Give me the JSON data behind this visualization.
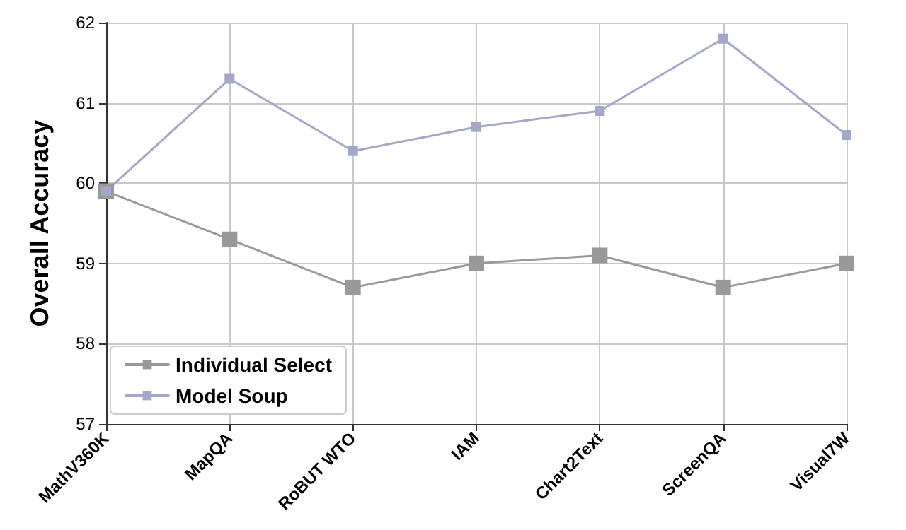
{
  "chart_data": {
    "type": "line",
    "ylabel": "Overall Accuracy",
    "categories": [
      "MathV360K",
      "MapQA",
      "RoBUT WTO",
      "IAM",
      "Chart2Text",
      "ScreenQA",
      "Visual7W"
    ],
    "series": [
      {
        "name": "Individual Select",
        "color": "#999999",
        "values": [
          59.9,
          59.3,
          58.7,
          59.0,
          59.1,
          58.7,
          59.0
        ]
      },
      {
        "name": "Model Soup",
        "color": "#a3a8c8",
        "values": [
          59.9,
          61.3,
          60.4,
          60.7,
          60.9,
          61.8,
          60.6
        ]
      }
    ],
    "ylim": [
      57,
      62
    ],
    "yticks": [
      57,
      58,
      59,
      60,
      61,
      62
    ],
    "grid": true,
    "legend": "bottom left",
    "marker": "square",
    "line_style": "solid"
  }
}
